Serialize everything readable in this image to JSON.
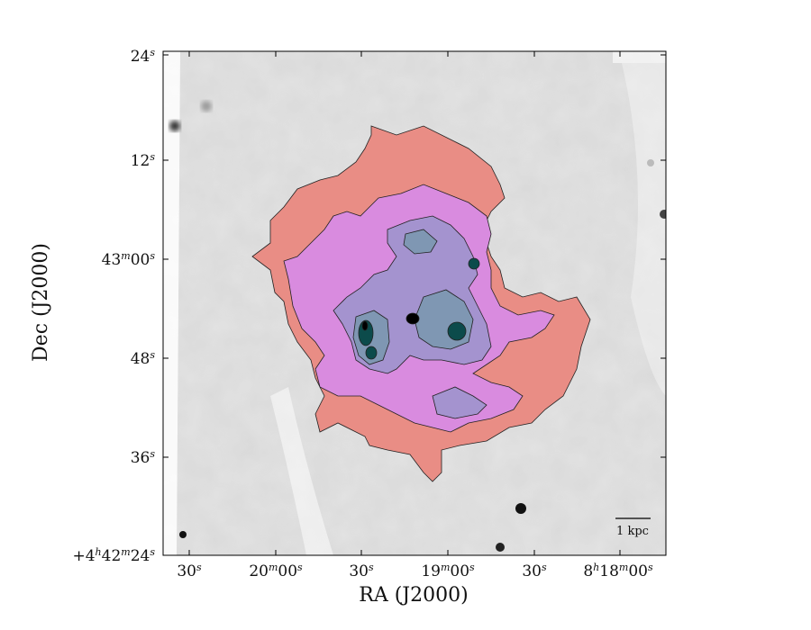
{
  "figure": {
    "x_axis_label": "RA (J2000)",
    "y_axis_label": "Dec (J2000)",
    "x_ticks": [
      "30",
      "20",
      "30",
      "19",
      "30",
      "8"
    ],
    "x_tick_texts": [
      {
        "h": "",
        "m": "",
        "s": "30"
      },
      {
        "h": "",
        "m": "20",
        "s": "00"
      },
      {
        "h": "",
        "m": "",
        "s": "30"
      },
      {
        "h": "",
        "m": "19",
        "s": "00"
      },
      {
        "h": "",
        "m": "",
        "s": "30"
      },
      {
        "h": "8",
        "m": "18",
        "s": "00"
      }
    ],
    "y_tick_texts": [
      {
        "pre": "",
        "h": "",
        "m": "",
        "s": "24"
      },
      {
        "pre": "",
        "h": "",
        "m": "",
        "s": "12"
      },
      {
        "pre": "",
        "h": "",
        "m": "43",
        "s": "00"
      },
      {
        "pre": "",
        "h": "",
        "m": "",
        "s": "48"
      },
      {
        "pre": "",
        "h": "",
        "m": "",
        "s": "36"
      },
      {
        "pre": "+4",
        "h": "",
        "m": "42",
        "s": "24"
      }
    ],
    "scale_bar_label": "1 kpc",
    "colors": {
      "outer_contour": "#e98d85",
      "second_contour": "#d98bdf",
      "third_contour": "#a493cf",
      "fourth_contour": "#7f97b3",
      "core_contour": "#0c4b4b",
      "background_gray": "#e2e2e2"
    }
  }
}
